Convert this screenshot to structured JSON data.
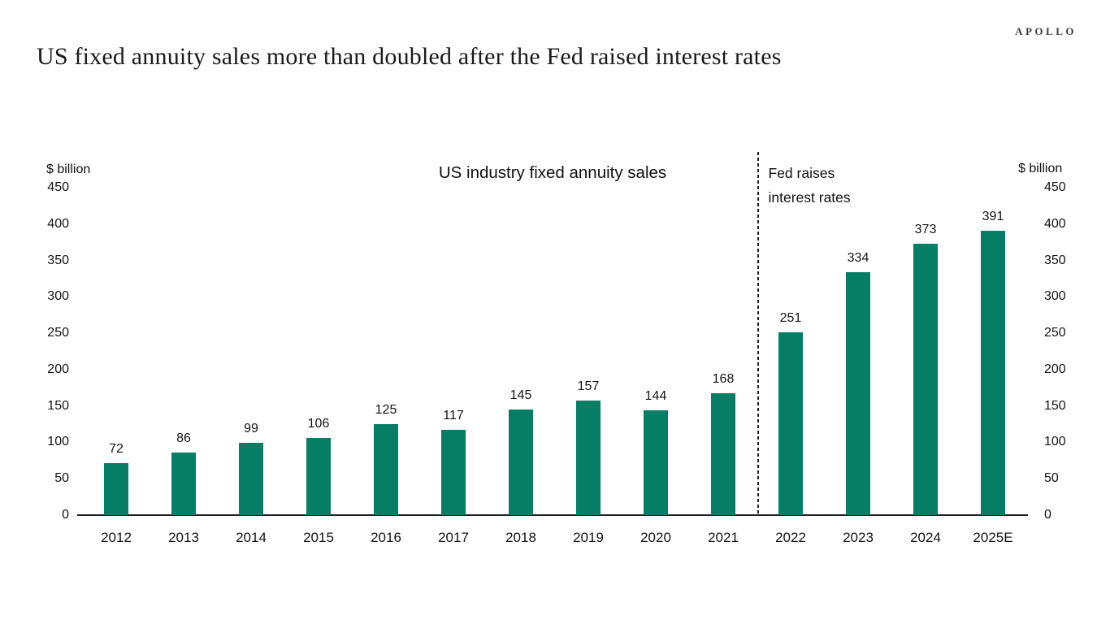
{
  "logo": "APOLLO",
  "page_title": "US fixed annuity sales more than doubled after the Fed raised interest rates",
  "colors": {
    "bar": "#067e66",
    "axis": "#1f1f1f",
    "text": "#141414"
  },
  "chart_data": {
    "type": "bar",
    "title": "US industry fixed annuity sales",
    "ylabel_left": "$ billion",
    "ylabel_right": "$ billion",
    "ylim": [
      0,
      450
    ],
    "yticks": [
      0,
      50,
      100,
      150,
      200,
      250,
      300,
      350,
      400,
      450
    ],
    "categories": [
      "2012",
      "2013",
      "2014",
      "2015",
      "2016",
      "2017",
      "2018",
      "2019",
      "2020",
      "2021",
      "2022",
      "2023",
      "2024",
      "2025E"
    ],
    "values": [
      72,
      86,
      99,
      106,
      125,
      117,
      145,
      157,
      144,
      168,
      251,
      334,
      373,
      391
    ],
    "grid": false,
    "data_labels": true,
    "legend": "none",
    "separator": {
      "after_category": "2021",
      "after_index": 9,
      "style": "dashed",
      "label_lines": [
        "Fed raises",
        "interest rates"
      ]
    }
  }
}
